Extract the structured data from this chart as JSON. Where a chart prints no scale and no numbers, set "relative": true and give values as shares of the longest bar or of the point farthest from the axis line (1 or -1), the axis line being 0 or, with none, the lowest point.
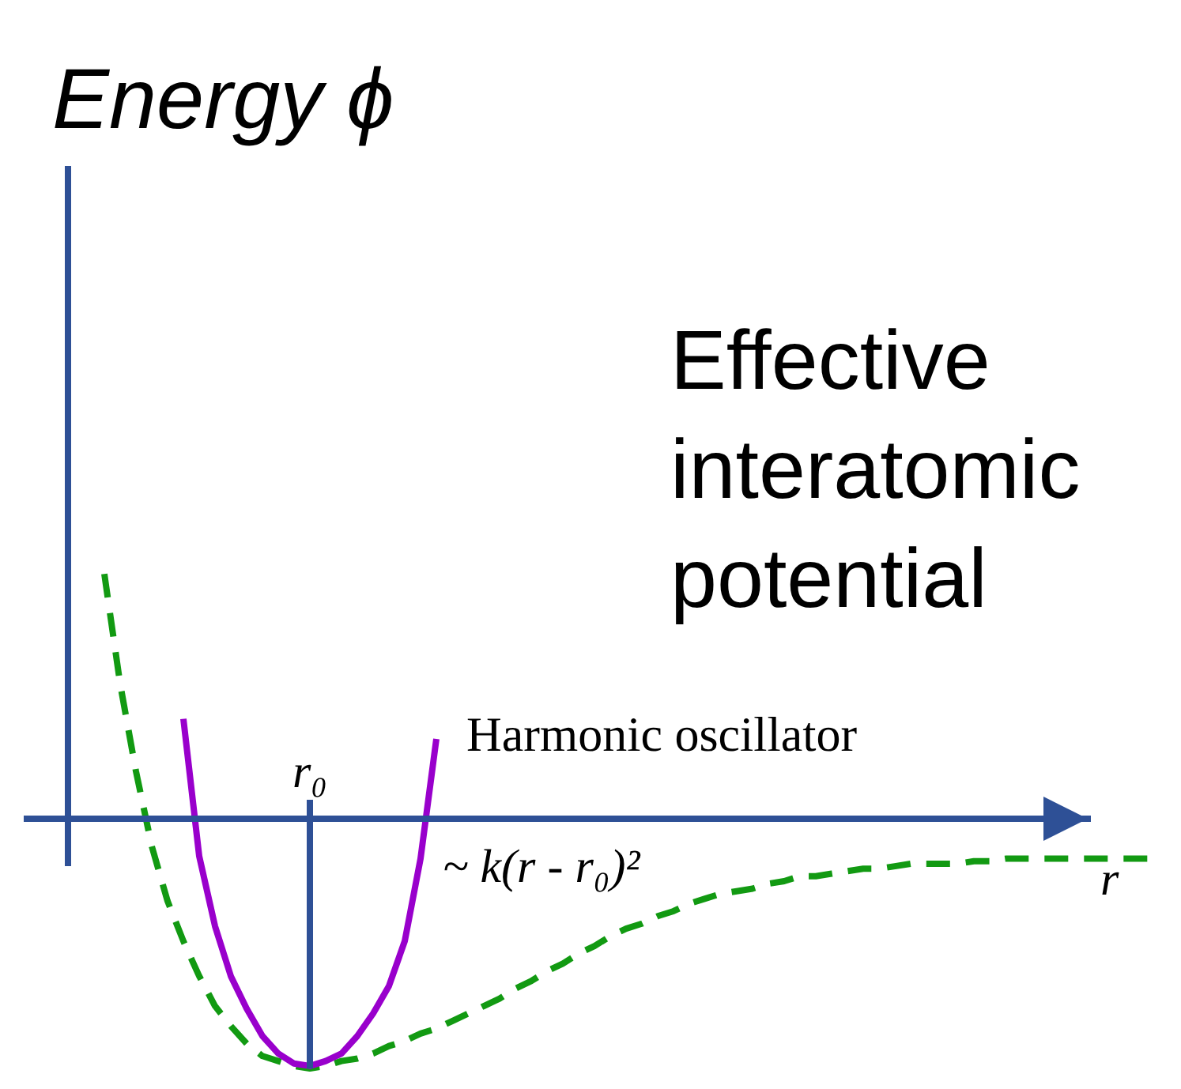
{
  "chart_data": {
    "type": "line",
    "relative": true,
    "title": "Effective interatomic potential",
    "xlabel": "r",
    "categories": [
      null,
      null,
      null,
      null,
      null,
      null,
      null,
      null,
      null,
      null,
      null,
      null,
      null,
      null,
      null,
      null,
      null,
      null,
      null,
      null,
      null,
      null,
      null,
      null,
      null,
      null,
      null,
      null,
      null,
      null,
      null,
      null,
      null,
      null,
      null,
      null,
      null,
      null,
      null,
      null,
      null,
      null,
      null,
      null,
      null,
      null,
      null,
      null,
      null,
      null,
      null,
      null,
      null,
      null,
      null,
      null,
      null,
      null,
      null,
      null,
      null,
      null,
      null,
      null,
      null,
      null,
      null
    ],
    "series": [
      {
        "color": "#129a12",
        "line_style": "dashed",
        "values": [
          0.98,
          0.54,
          0.19,
          -0.11,
          -0.33,
          -0.49,
          -0.63,
          -0.75,
          -0.83,
          -0.9,
          -0.95,
          -0.97,
          -0.99,
          -1,
          -0.99,
          -0.97,
          -0.96,
          -0.94,
          -0.91,
          -0.89,
          -0.86,
          -0.84,
          -0.81,
          -0.78,
          -0.75,
          -0.72,
          -0.68,
          -0.65,
          -0.61,
          -0.58,
          -0.54,
          -0.51,
          -0.47,
          -0.44,
          -0.42,
          -0.39,
          -0.37,
          -0.34,
          -0.32,
          -0.3,
          -0.29,
          -0.28,
          -0.26,
          -0.25,
          -0.23,
          -0.23,
          -0.22,
          -0.21,
          -0.2,
          -0.2,
          -0.19,
          -0.18,
          -0.18,
          -0.18,
          -0.18,
          -0.17,
          -0.17,
          -0.16,
          -0.16,
          -0.16,
          -0.16,
          -0.16,
          -0.16,
          -0.16,
          -0.16,
          -0.16,
          -0.16
        ]
      },
      {
        "name": "Harmonic oscillator",
        "color": "#9900cc",
        "line_style": "solid",
        "values": [
          null,
          null,
          null,
          null,
          null,
          0.4,
          -0.15,
          -0.43,
          -0.63,
          -0.76,
          -0.87,
          -0.94,
          -0.98,
          -0.99,
          -0.97,
          -0.94,
          -0.87,
          -0.78,
          -0.67,
          -0.49,
          -0.16,
          0.32,
          null,
          null,
          null,
          null,
          null,
          null,
          null,
          null,
          null,
          null,
          null,
          null,
          null,
          null,
          null,
          null,
          null,
          null,
          null,
          null,
          null,
          null,
          null,
          null,
          null,
          null,
          null,
          null,
          null,
          null,
          null,
          null,
          null,
          null,
          null,
          null,
          null,
          null,
          null,
          null,
          null,
          null,
          null,
          null,
          null
        ]
      }
    ],
    "ref_lines": [
      {
        "axis": "y",
        "value": 0,
        "color": "#2e5096"
      }
    ],
    "annotations": [
      "Energy ϕ",
      {
        "text": "r₀",
        "y": -1
      },
      "~ k(r - r₀)²"
    ],
    "legend": false
  }
}
